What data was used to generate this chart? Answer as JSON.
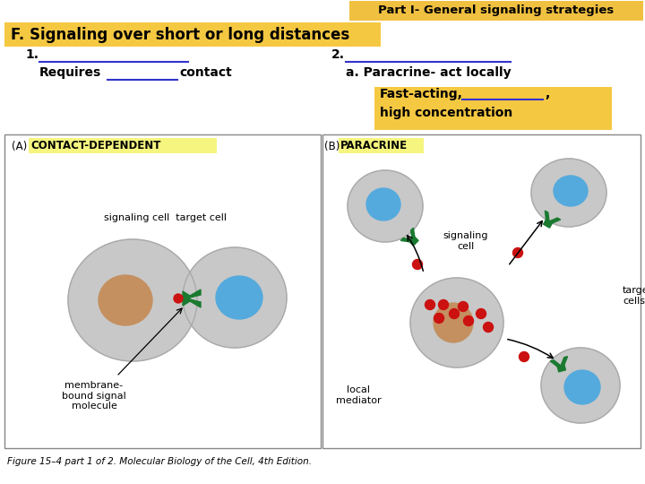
{
  "bg_color": "#ffffff",
  "title_text": "Part I- General signaling strategies",
  "title_bg": "#f0c040",
  "title_color": "#000000",
  "title_fontsize": 9.5,
  "header_text": "F. Signaling over short or long distances",
  "header_bg": "#f5c842",
  "header_color": "#000000",
  "header_fontsize": 12,
  "line2a": "a. Paracrine- act locally",
  "box_bg": "#f5c842",
  "label_A_highlight": "#f5f580",
  "label_B_highlight": "#f5f580",
  "footer_text": "Figure 15–4 part 1 of 2. Molecular Biology of the Cell, 4th Edition.",
  "underline_color": "#3333cc",
  "text_fontsize": 10,
  "sub_fontsize": 9.5,
  "cell_gray": "#c8c8c8",
  "cell_edge": "#aaaaaa",
  "nucleus_brown": "#c49060",
  "nucleus_blue": "#55aadd",
  "green_receptor": "#1a7a30",
  "red_dot": "#cc1111",
  "arrow_color": "#000000"
}
